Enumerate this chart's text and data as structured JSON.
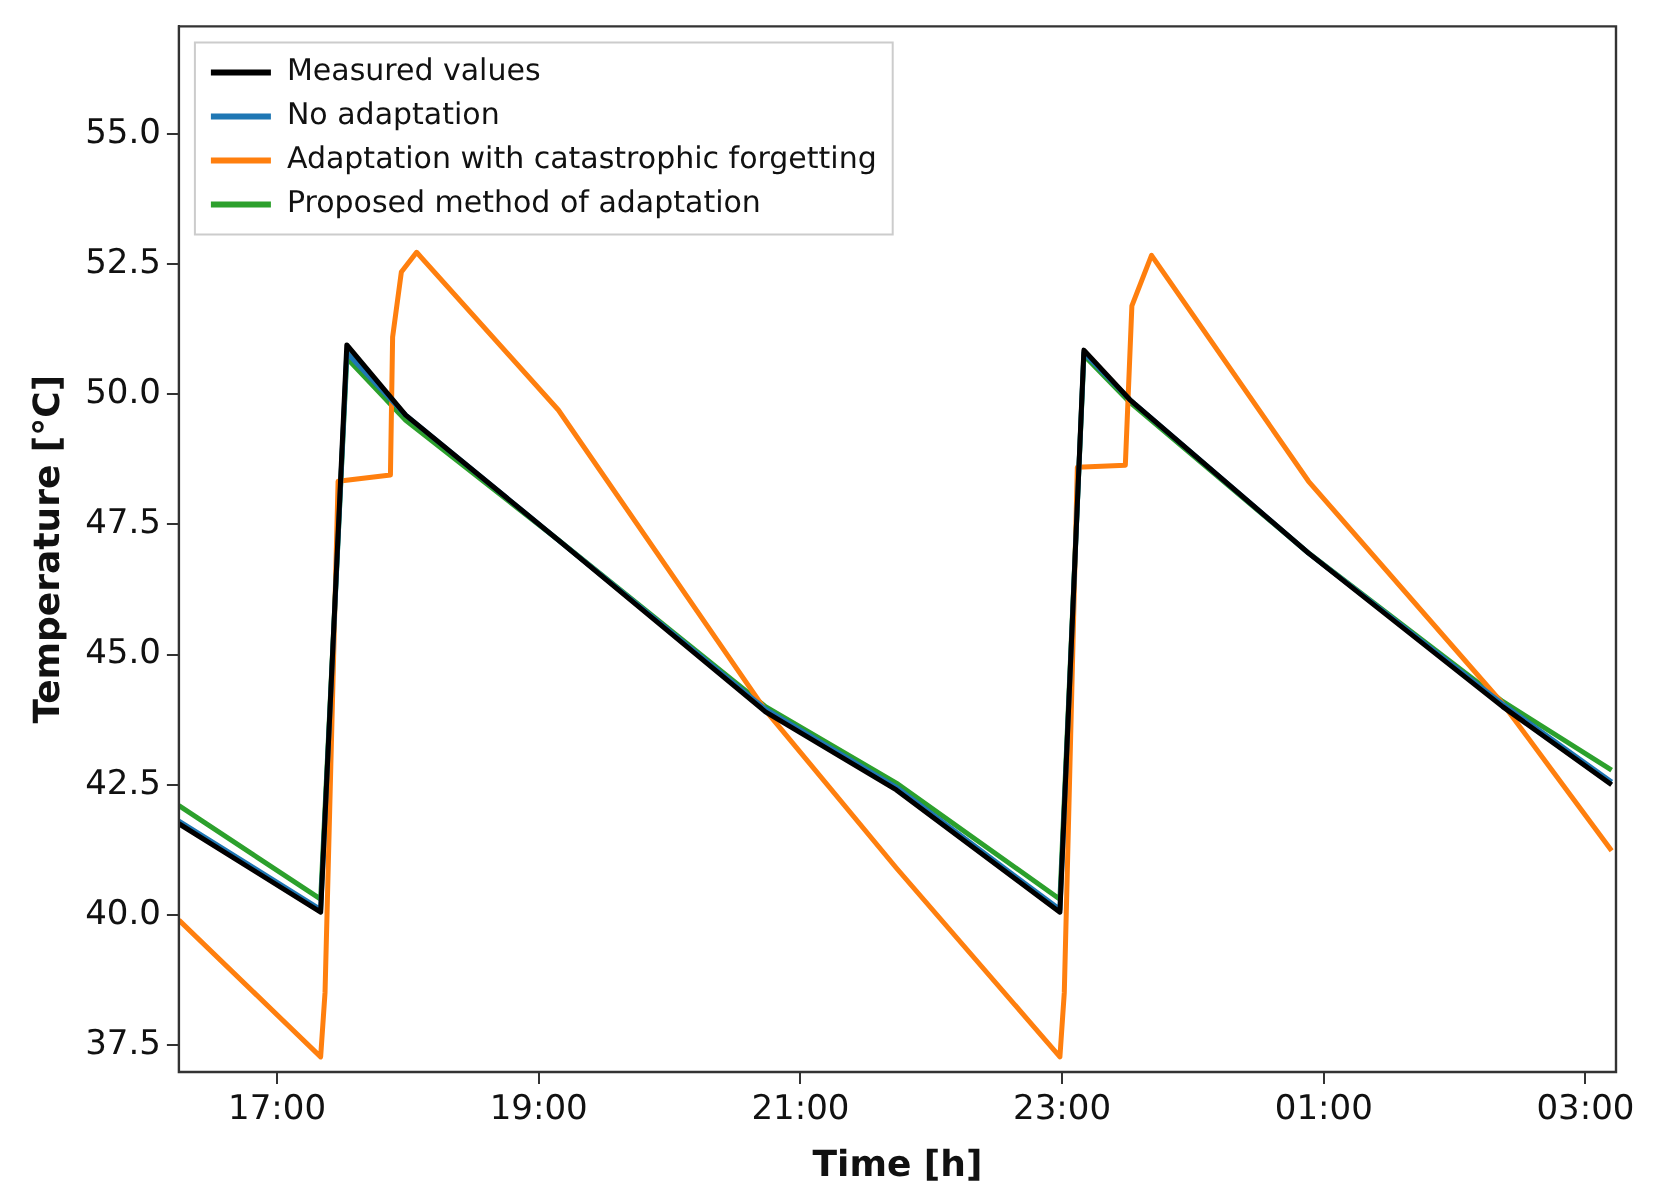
{
  "chart_data": {
    "type": "line",
    "xlabel": "Time [h]",
    "ylabel": "Temperature [°C]",
    "xlim": [
      "--01-01T16:15",
      "--01-02T03:14"
    ],
    "ylim": [
      36.98,
      57.07
    ],
    "xticks": [
      {
        "value": "--01-01T17:00",
        "label": "17:00"
      },
      {
        "value": "--01-01T19:00",
        "label": "19:00"
      },
      {
        "value": "--01-01T21:00",
        "label": "21:00"
      },
      {
        "value": "--01-01T23:00",
        "label": "23:00"
      },
      {
        "value": "--01-02T01:00",
        "label": "01:00"
      },
      {
        "value": "--01-02T03:00",
        "label": "03:00"
      }
    ],
    "yticks": [
      {
        "value": 37.5,
        "label": "37.5"
      },
      {
        "value": 40,
        "label": "40.0"
      },
      {
        "value": 42.5,
        "label": "42.5"
      },
      {
        "value": 45,
        "label": "45.0"
      },
      {
        "value": 47.5,
        "label": "47.5"
      },
      {
        "value": 50,
        "label": "50.0"
      },
      {
        "value": 52.5,
        "label": "52.5"
      },
      {
        "value": 55,
        "label": "55.0"
      }
    ],
    "grid": false,
    "legend": "top left",
    "marker": "none",
    "line_style": "solid",
    "series": [
      {
        "name": "Measured values",
        "color": "#000000",
        "x": [
          "--01-01T16:15",
          "--01-01T17:20",
          "--01-01T17:32",
          "--01-01T17:59",
          "--01-01T19:09",
          "--01-01T20:44",
          "--01-01T21:44",
          "--01-01T22:59",
          "--01-01T23:10",
          "--01-01T23:31",
          "--01-02T00:53",
          "--01-02T02:22",
          "--01-02T03:12"
        ],
        "values": [
          41.75,
          40.05,
          50.95,
          49.6,
          47.2,
          43.9,
          42.4,
          40.05,
          50.85,
          49.9,
          46.95,
          44.0,
          42.5
        ]
      },
      {
        "name": "No adaptation",
        "color": "#1f77b4",
        "x": [
          "--01-01T16:15",
          "--01-01T17:20",
          "--01-01T17:32",
          "--01-01T17:59",
          "--01-01T19:09",
          "--01-01T20:44",
          "--01-01T21:44",
          "--01-01T22:59",
          "--01-01T23:10",
          "--01-01T23:31",
          "--01-02T00:53",
          "--01-02T02:22",
          "--01-02T03:12"
        ],
        "values": [
          41.8,
          40.1,
          50.8,
          49.6,
          47.2,
          43.95,
          42.45,
          40.1,
          50.8,
          49.9,
          46.95,
          44.05,
          42.55
        ]
      },
      {
        "name": "Adaptation with catastrophic forgetting",
        "color": "#ff7f0e",
        "x": [
          "--01-01T16:15",
          "--01-01T17:20",
          "--01-01T17:22",
          "--01-01T17:28",
          "--01-01T17:52",
          "--01-01T17:53",
          "--01-01T17:57",
          "--01-01T18:04",
          "--01-01T19:09",
          "--01-01T20:44",
          "--01-01T21:44",
          "--01-01T22:59",
          "--01-01T23:01",
          "--01-01T23:07",
          "--01-01T23:29",
          "--01-01T23:32",
          "--01-01T23:41",
          "--01-02T00:53",
          "--01-02T02:22",
          "--01-02T03:12"
        ],
        "values": [
          39.9,
          37.27,
          38.5,
          48.33,
          48.45,
          51.1,
          52.35,
          52.73,
          49.7,
          43.93,
          40.9,
          37.27,
          38.5,
          48.6,
          48.64,
          51.7,
          52.67,
          48.33,
          44.06,
          41.23
        ]
      },
      {
        "name": "Proposed method of adaptation",
        "color": "#2ca02c",
        "x": [
          "--01-01T16:15",
          "--01-01T17:20",
          "--01-01T17:32",
          "--01-01T17:59",
          "--01-01T19:09",
          "--01-01T20:44",
          "--01-01T21:44",
          "--01-01T22:59",
          "--01-01T23:10",
          "--01-01T23:31",
          "--01-02T00:53",
          "--01-02T02:22",
          "--01-02T03:12"
        ],
        "values": [
          42.1,
          40.3,
          50.7,
          49.5,
          47.2,
          44.0,
          42.53,
          40.3,
          50.75,
          49.85,
          46.95,
          44.1,
          42.78
        ]
      }
    ]
  }
}
